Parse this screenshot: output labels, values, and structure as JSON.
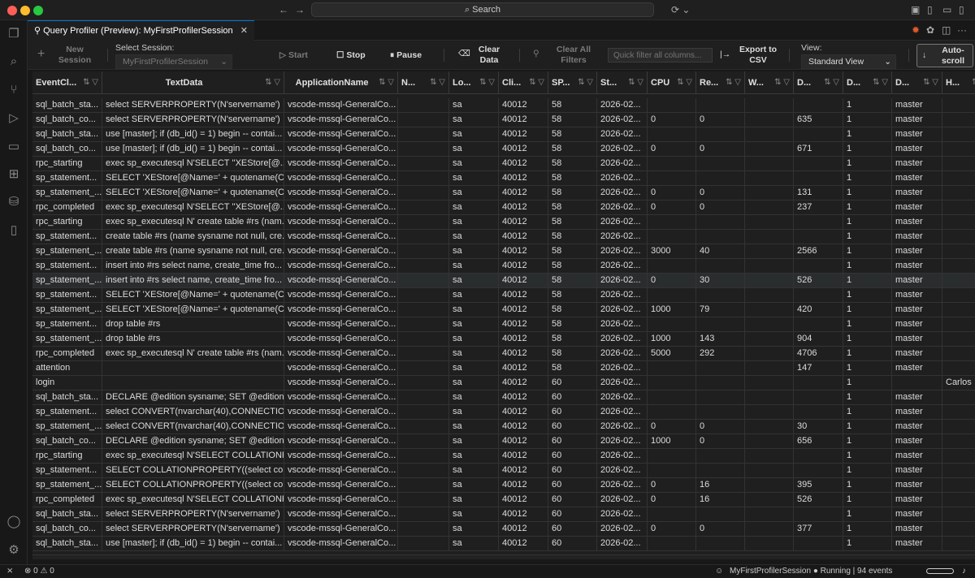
{
  "titlebar": {
    "search_label": "Search"
  },
  "tab": {
    "title": "Query Profiler (Preview): MyFirstProfilerSession"
  },
  "toolbar": {
    "new_session": "New Session",
    "select_session_label": "Select Session:",
    "session_value": "MyFirstProfilerSession",
    "start": "Start",
    "stop": "Stop",
    "pause": "Pause",
    "clear_data": "Clear Data",
    "clear_filters": "Clear All Filters",
    "filter_placeholder": "Quick filter all columns...",
    "export": "Export to CSV",
    "view_label": "View:",
    "view_value": "Standard View",
    "autoscroll": "Auto-scroll"
  },
  "table": {
    "columns": [
      "EventCl...",
      "TextData",
      "ApplicationName",
      "N...",
      "Lo...",
      "Cli...",
      "SP...",
      "St...",
      "CPU",
      "Re...",
      "W...",
      "D...",
      "D...",
      "D...",
      "H..."
    ],
    "rows": [
      [
        "sql_batch_sta...",
        "select SERVERPROPERTY(N'servername')",
        "vscode-mssql-GeneralCo...",
        "",
        "sa",
        "40012",
        "58",
        "2026-02...",
        "",
        "",
        "",
        "",
        "1",
        "master",
        ""
      ],
      [
        "sql_batch_co...",
        "select SERVERPROPERTY(N'servername')",
        "vscode-mssql-GeneralCo...",
        "",
        "sa",
        "40012",
        "58",
        "2026-02...",
        "0",
        "0",
        "",
        "635",
        "1",
        "master",
        ""
      ],
      [
        "sql_batch_sta...",
        "use [master]; if (db_id() = 1) begin -- contai...",
        "vscode-mssql-GeneralCo...",
        "",
        "sa",
        "40012",
        "58",
        "2026-02...",
        "",
        "",
        "",
        "",
        "1",
        "master",
        ""
      ],
      [
        "sql_batch_co...",
        "use [master]; if (db_id() = 1) begin -- contai...",
        "vscode-mssql-GeneralCo...",
        "",
        "sa",
        "40012",
        "58",
        "2026-02...",
        "0",
        "0",
        "",
        "671",
        "1",
        "master",
        ""
      ],
      [
        "rpc_starting",
        "exec sp_executesql N'SELECT ''XEStore[@...",
        "vscode-mssql-GeneralCo...",
        "",
        "sa",
        "40012",
        "58",
        "2026-02...",
        "",
        "",
        "",
        "",
        "1",
        "master",
        ""
      ],
      [
        "sp_statement...",
        "SELECT 'XEStore[@Name=' + quotename(C...",
        "vscode-mssql-GeneralCo...",
        "",
        "sa",
        "40012",
        "58",
        "2026-02...",
        "",
        "",
        "",
        "",
        "1",
        "master",
        ""
      ],
      [
        "sp_statement_...",
        "SELECT 'XEStore[@Name=' + quotename(C...",
        "vscode-mssql-GeneralCo...",
        "",
        "sa",
        "40012",
        "58",
        "2026-02...",
        "0",
        "0",
        "",
        "131",
        "1",
        "master",
        ""
      ],
      [
        "rpc_completed",
        "exec sp_executesql N'SELECT ''XEStore[@...",
        "vscode-mssql-GeneralCo...",
        "",
        "sa",
        "40012",
        "58",
        "2026-02...",
        "0",
        "0",
        "",
        "237",
        "1",
        "master",
        ""
      ],
      [
        "rpc_starting",
        "exec sp_executesql N' create table #rs (nam...",
        "vscode-mssql-GeneralCo...",
        "",
        "sa",
        "40012",
        "58",
        "2026-02...",
        "",
        "",
        "",
        "",
        "1",
        "master",
        ""
      ],
      [
        "sp_statement...",
        "create table #rs (name sysname not null, cre...",
        "vscode-mssql-GeneralCo...",
        "",
        "sa",
        "40012",
        "58",
        "2026-02...",
        "",
        "",
        "",
        "",
        "1",
        "master",
        ""
      ],
      [
        "sp_statement_...",
        "create table #rs (name sysname not null, cre...",
        "vscode-mssql-GeneralCo...",
        "",
        "sa",
        "40012",
        "58",
        "2026-02...",
        "3000",
        "40",
        "",
        "2566",
        "1",
        "master",
        ""
      ],
      [
        "sp_statement...",
        "insert into #rs select name, create_time fro...",
        "vscode-mssql-GeneralCo...",
        "",
        "sa",
        "40012",
        "58",
        "2026-02...",
        "",
        "",
        "",
        "",
        "1",
        "master",
        ""
      ],
      [
        "sp_statement_...",
        "insert into #rs select name, create_time fro...",
        "vscode-mssql-GeneralCo...",
        "",
        "sa",
        "40012",
        "58",
        "2026-02...",
        "0",
        "30",
        "",
        "526",
        "1",
        "master",
        ""
      ],
      [
        "sp_statement...",
        "SELECT 'XEStore[@Name=' + quotename(C...",
        "vscode-mssql-GeneralCo...",
        "",
        "sa",
        "40012",
        "58",
        "2026-02...",
        "",
        "",
        "",
        "",
        "1",
        "master",
        ""
      ],
      [
        "sp_statement_...",
        "SELECT 'XEStore[@Name=' + quotename(C...",
        "vscode-mssql-GeneralCo...",
        "",
        "sa",
        "40012",
        "58",
        "2026-02...",
        "1000",
        "79",
        "",
        "420",
        "1",
        "master",
        ""
      ],
      [
        "sp_statement...",
        "drop table #rs",
        "vscode-mssql-GeneralCo...",
        "",
        "sa",
        "40012",
        "58",
        "2026-02...",
        "",
        "",
        "",
        "",
        "1",
        "master",
        ""
      ],
      [
        "sp_statement_...",
        "drop table #rs",
        "vscode-mssql-GeneralCo...",
        "",
        "sa",
        "40012",
        "58",
        "2026-02...",
        "1000",
        "143",
        "",
        "904",
        "1",
        "master",
        ""
      ],
      [
        "rpc_completed",
        "exec sp_executesql N' create table #rs (nam...",
        "vscode-mssql-GeneralCo...",
        "",
        "sa",
        "40012",
        "58",
        "2026-02...",
        "5000",
        "292",
        "",
        "4706",
        "1",
        "master",
        ""
      ],
      [
        "attention",
        "",
        "vscode-mssql-GeneralCo...",
        "",
        "sa",
        "40012",
        "58",
        "2026-02...",
        "",
        "",
        "",
        "147",
        "1",
        "master",
        ""
      ],
      [
        "login",
        "",
        "vscode-mssql-GeneralCo...",
        "",
        "sa",
        "40012",
        "60",
        "2026-02...",
        "",
        "",
        "",
        "",
        "1",
        "",
        "Carlos"
      ],
      [
        "sql_batch_sta...",
        "DECLARE @edition sysname; SET @edition ...",
        "vscode-mssql-GeneralCo...",
        "",
        "sa",
        "40012",
        "60",
        "2026-02...",
        "",
        "",
        "",
        "",
        "1",
        "master",
        ""
      ],
      [
        "sp_statement...",
        "select CONVERT(nvarchar(40),CONNECTIO...",
        "vscode-mssql-GeneralCo...",
        "",
        "sa",
        "40012",
        "60",
        "2026-02...",
        "",
        "",
        "",
        "",
        "1",
        "master",
        ""
      ],
      [
        "sp_statement_...",
        "select CONVERT(nvarchar(40),CONNECTIO...",
        "vscode-mssql-GeneralCo...",
        "",
        "sa",
        "40012",
        "60",
        "2026-02...",
        "0",
        "0",
        "",
        "30",
        "1",
        "master",
        ""
      ],
      [
        "sql_batch_co...",
        "DECLARE @edition sysname; SET @edition ...",
        "vscode-mssql-GeneralCo...",
        "",
        "sa",
        "40012",
        "60",
        "2026-02...",
        "1000",
        "0",
        "",
        "656",
        "1",
        "master",
        ""
      ],
      [
        "rpc_starting",
        "exec sp_executesql N'SELECT COLLATIONP...",
        "vscode-mssql-GeneralCo...",
        "",
        "sa",
        "40012",
        "60",
        "2026-02...",
        "",
        "",
        "",
        "",
        "1",
        "master",
        ""
      ],
      [
        "sp_statement...",
        "SELECT COLLATIONPROPERTY((select coll...",
        "vscode-mssql-GeneralCo...",
        "",
        "sa",
        "40012",
        "60",
        "2026-02...",
        "",
        "",
        "",
        "",
        "1",
        "master",
        ""
      ],
      [
        "sp_statement_...",
        "SELECT COLLATIONPROPERTY((select coll...",
        "vscode-mssql-GeneralCo...",
        "",
        "sa",
        "40012",
        "60",
        "2026-02...",
        "0",
        "16",
        "",
        "395",
        "1",
        "master",
        ""
      ],
      [
        "rpc_completed",
        "exec sp_executesql N'SELECT COLLATIONP...",
        "vscode-mssql-GeneralCo...",
        "",
        "sa",
        "40012",
        "60",
        "2026-02...",
        "0",
        "16",
        "",
        "526",
        "1",
        "master",
        ""
      ],
      [
        "sql_batch_sta...",
        "select SERVERPROPERTY(N'servername')",
        "vscode-mssql-GeneralCo...",
        "",
        "sa",
        "40012",
        "60",
        "2026-02...",
        "",
        "",
        "",
        "",
        "1",
        "master",
        ""
      ],
      [
        "sql_batch_co...",
        "select SERVERPROPERTY(N'servername')",
        "vscode-mssql-GeneralCo...",
        "",
        "sa",
        "40012",
        "60",
        "2026-02...",
        "0",
        "0",
        "",
        "377",
        "1",
        "master",
        ""
      ],
      [
        "sql_batch_sta...",
        "use [master]; if (db_id() = 1) begin -- contai...",
        "vscode-mssql-GeneralCo...",
        "",
        "sa",
        "40012",
        "60",
        "2026-02...",
        "",
        "",
        "",
        "",
        "1",
        "master",
        ""
      ]
    ],
    "highlighted_row": 12
  },
  "status": {
    "errors": "0",
    "warnings": "0",
    "session": "MyFirstProfilerSession",
    "state": "Running | 94 events"
  }
}
